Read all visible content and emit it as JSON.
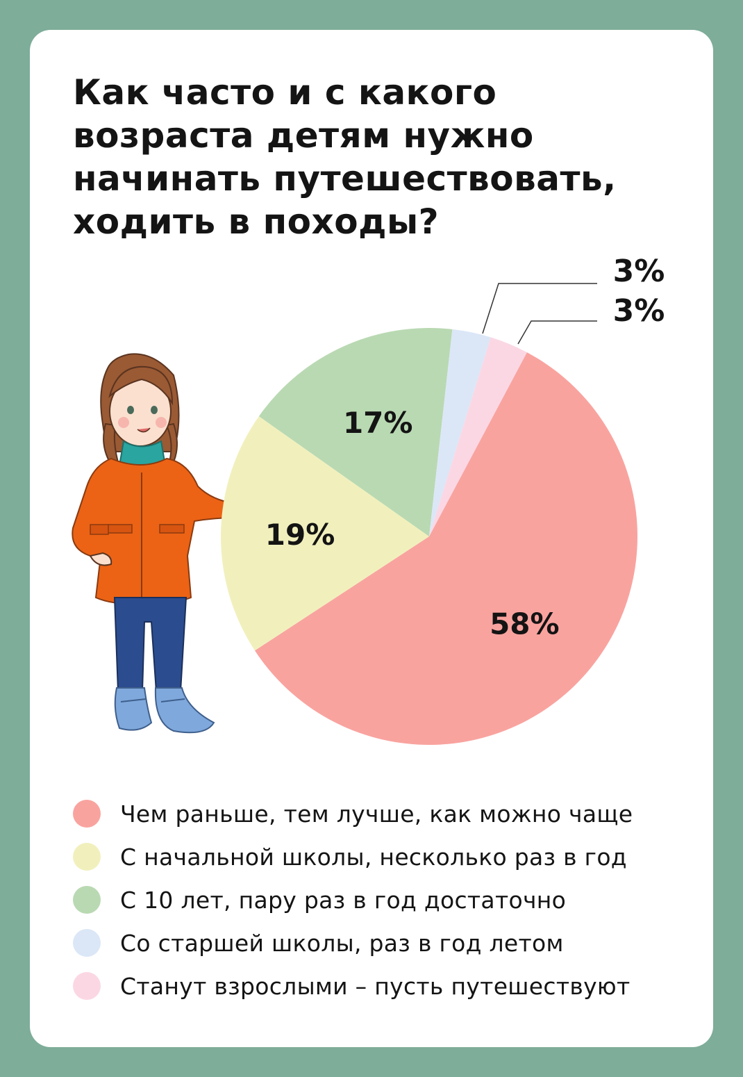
{
  "title": "Как часто и с какого возраста детям нужно начинать путешествовать, ходить в походы?",
  "chart_data": {
    "type": "pie",
    "title": "Как часто и с какого возраста детям нужно начинать путешествовать, ходить в походы?",
    "slices": [
      {
        "name": "Чем раньше, тем лучше, как можно чаще",
        "value": 58,
        "label": "58%",
        "color": "#f9a39f"
      },
      {
        "name": "С начальной школы, несколько раз в год",
        "value": 19,
        "label": "19%",
        "color": "#f1f0bd"
      },
      {
        "name": "С 10 лет, пару раз в год достаточно",
        "value": 17,
        "label": "17%",
        "color": "#b9d9b2"
      },
      {
        "name": "Со старшей школы, раз в год летом",
        "value": 3,
        "label": "3%",
        "color": "#dbe7f7"
      },
      {
        "name": "Станут взрослыми – пусть путешествуют",
        "value": 3,
        "label": "3%",
        "color": "#fbd7e4"
      }
    ],
    "start_angle_deg": 28,
    "direction": "clockwise",
    "legend_position": "bottom"
  },
  "legend": [
    {
      "label": "Чем раньше, тем лучше, как можно чаще",
      "color": "#f9a39f"
    },
    {
      "label": "С начальной школы, несколько раз в год",
      "color": "#f1f0bd"
    },
    {
      "label": "С 10 лет, пару раз в год достаточно",
      "color": "#b9d9b2"
    },
    {
      "label": "Со старшей школы, раз в год летом",
      "color": "#dbe7f7"
    },
    {
      "label": "Станут взрослыми – пусть путешествуют",
      "color": "#fbd7e4"
    }
  ],
  "colors": {
    "background": "#7ead99",
    "card": "#ffffff",
    "text": "#141414"
  }
}
